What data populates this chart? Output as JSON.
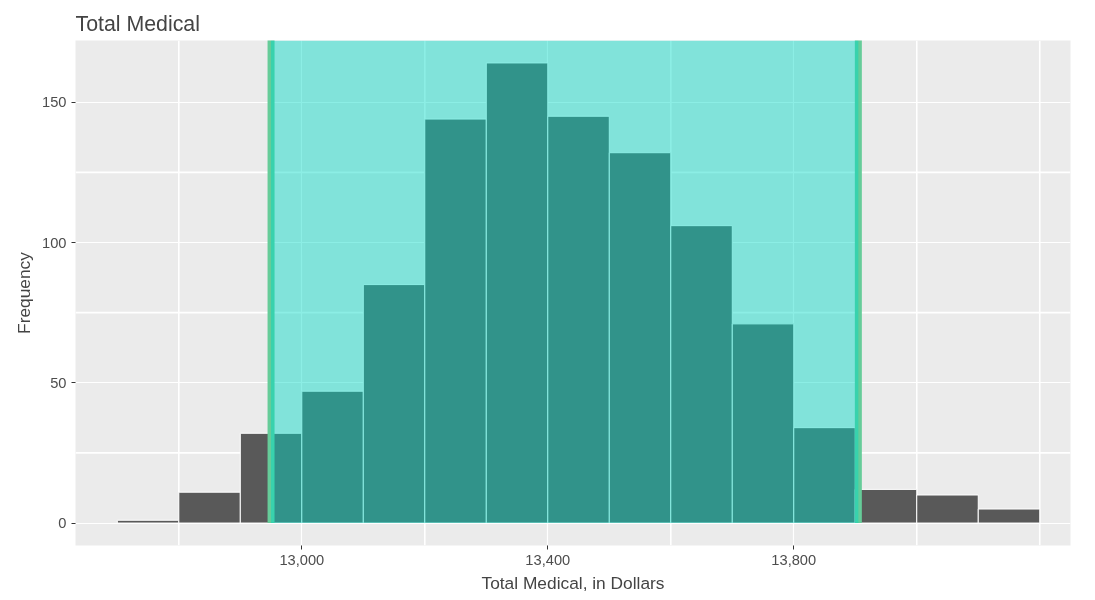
{
  "chart_data": {
    "type": "histogram",
    "title": "Total Medical",
    "xlabel": "Total Medical, in Dollars",
    "ylabel": "Frequency",
    "bins": [
      12700,
      12800,
      12900,
      13000,
      13100,
      13200,
      13300,
      13400,
      13500,
      13600,
      13700,
      13800,
      13900,
      14000,
      14100,
      14200
    ],
    "values": [
      1,
      11,
      32,
      47,
      85,
      144,
      164,
      145,
      132,
      106,
      71,
      34,
      12,
      10,
      5
    ],
    "color": "#595959",
    "bands": [
      {
        "axis": "x",
        "from": 12950,
        "to": 13905,
        "color": "#00d9c5"
      }
    ],
    "ref_lines": [
      {
        "axis": "x",
        "value": 12950,
        "color": "#66cc99"
      },
      {
        "axis": "x",
        "value": 13905,
        "color": "#66cc99"
      }
    ],
    "xlim": [
      12632,
      14250
    ],
    "ylim": [
      -8,
      172
    ],
    "xticks": [
      {
        "value": 13000,
        "label": "13,000"
      },
      {
        "value": 13400,
        "label": "13,400"
      },
      {
        "value": 13800,
        "label": "13,800"
      }
    ],
    "yticks": [
      0,
      50,
      100,
      150
    ],
    "grid": true
  }
}
